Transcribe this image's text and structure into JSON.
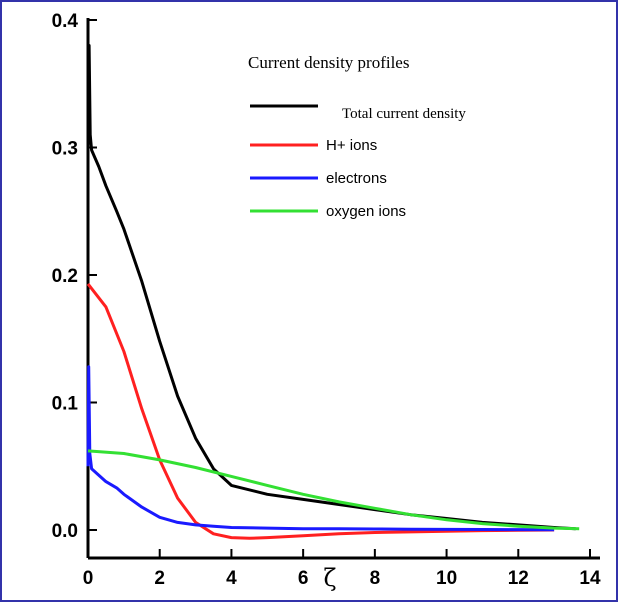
{
  "chart_data": {
    "type": "line",
    "title": "",
    "xlabel": "ζ",
    "ylabel": "",
    "xlim": [
      0,
      14
    ],
    "ylim": [
      -0.02,
      0.4
    ],
    "x_ticks": [
      "0",
      "2",
      "4",
      "6",
      "8",
      "10",
      "12",
      "14"
    ],
    "y_ticks": [
      "0.0",
      "0.1",
      "0.2",
      "0.3",
      "0.4"
    ],
    "grid": false,
    "legend": {
      "title": "Current density profiles",
      "placement": "top-right"
    },
    "colors": {
      "total": "#000000",
      "hplus": "#ff2020",
      "electrons": "#1a1aff",
      "oxygen": "#33e033",
      "frame": "#3333aa"
    },
    "series": [
      {
        "name": "Total current density",
        "color": "#000000",
        "x": [
          0,
          0.03,
          0.06,
          0.1,
          0.3,
          0.5,
          0.8,
          1,
          1.5,
          2,
          2.5,
          3,
          3.5,
          4,
          5,
          6,
          7,
          8,
          9,
          10,
          11,
          12,
          13,
          13.6
        ],
        "y": [
          0.3,
          0.38,
          0.31,
          0.298,
          0.285,
          0.27,
          0.25,
          0.236,
          0.195,
          0.148,
          0.105,
          0.072,
          0.048,
          0.035,
          0.028,
          0.024,
          0.02,
          0.016,
          0.012,
          0.009,
          0.006,
          0.004,
          0.002,
          0.001
        ]
      },
      {
        "name": "H+ ions",
        "color": "#ff2020",
        "x": [
          0,
          0.5,
          1,
          1.5,
          2,
          2.5,
          3,
          3.5,
          4,
          4.5,
          5,
          6,
          7,
          8,
          9,
          10,
          11,
          12,
          13
        ],
        "y": [
          0.193,
          0.175,
          0.14,
          0.095,
          0.055,
          0.025,
          0.006,
          -0.003,
          -0.006,
          -0.0065,
          -0.006,
          -0.0045,
          -0.003,
          -0.002,
          -0.0015,
          -0.001,
          -0.0005,
          -0.0002,
          0
        ]
      },
      {
        "name": "electrons",
        "color": "#1a1aff",
        "x": [
          0,
          0.02,
          0.05,
          0.1,
          0.3,
          0.5,
          0.8,
          1,
          1.5,
          2,
          2.5,
          3,
          3.5,
          4,
          5,
          6,
          7,
          8,
          9,
          10,
          11,
          12,
          13
        ],
        "y": [
          0.05,
          0.128,
          0.06,
          0.048,
          0.043,
          0.038,
          0.033,
          0.028,
          0.018,
          0.01,
          0.006,
          0.004,
          0.003,
          0.002,
          0.0015,
          0.001,
          0.001,
          0.0008,
          0.0006,
          0.0005,
          0.0004,
          0.0003,
          0.0002
        ]
      },
      {
        "name": "oxygen ions",
        "color": "#33e033",
        "x": [
          0,
          1,
          2,
          3,
          4,
          5,
          6,
          7,
          8,
          9,
          10,
          11,
          12,
          13,
          13.7
        ],
        "y": [
          0.062,
          0.06,
          0.055,
          0.049,
          0.042,
          0.035,
          0.028,
          0.022,
          0.017,
          0.012,
          0.008,
          0.005,
          0.003,
          0.0015,
          0.001
        ]
      }
    ]
  }
}
